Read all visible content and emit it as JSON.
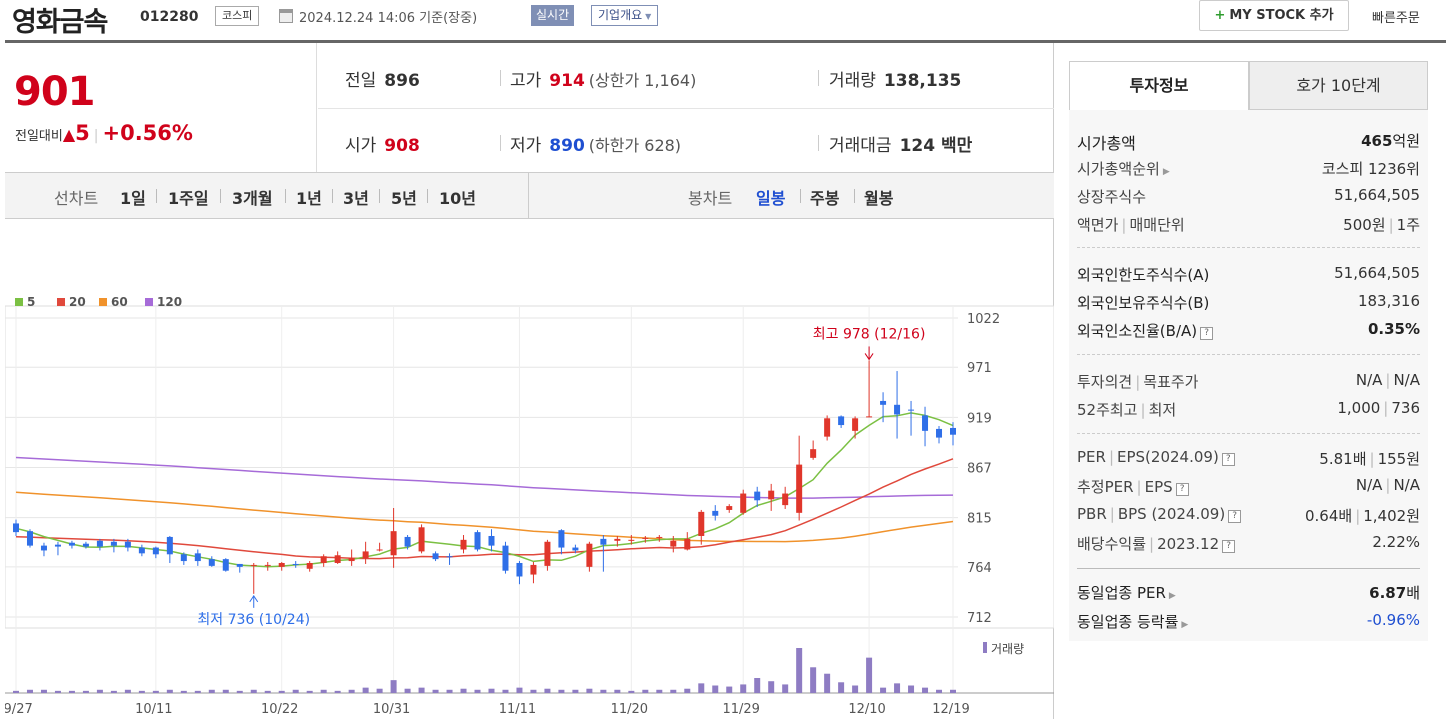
{
  "header": {
    "stock_name": "영화금속",
    "stock_code": "012280",
    "market": "코스피",
    "base_time": "2024.12.24 14:06 기준(장중)",
    "realtime_label": "실시간",
    "company_info_label": "기업개요",
    "mystock_label": "MY STOCK 추가",
    "quick_order_label": "빠른주문"
  },
  "quote": {
    "current_price": "901",
    "change_label": "전일대비",
    "change_arrow": "▲",
    "change_amount": "5",
    "change_pct": "+0.56%",
    "prev_close_label": "전일",
    "prev_close": "896",
    "high_label": "고가",
    "high": "914",
    "upper_limit": "(상한가 1,164)",
    "volume_label": "거래량",
    "volume": "138,135",
    "open_label": "시가",
    "open": "908",
    "low_label": "저가",
    "low": "890",
    "lower_limit": "(하한가 628)",
    "amount_label": "거래대금",
    "amount": "124 백만"
  },
  "toolbar": {
    "line_chart_label": "선차트",
    "line_periods": [
      "1일",
      "1주일",
      "3개월",
      "1년",
      "3년",
      "5년",
      "10년"
    ],
    "candle_chart_label": "봉차트",
    "candle_periods": [
      "일봉",
      "주봉",
      "월봉"
    ],
    "active_candle_period": "일봉"
  },
  "chart_data": {
    "type": "candlestick",
    "legend": [
      {
        "name": "5",
        "color": "#7bc043"
      },
      {
        "name": "20",
        "color": "#e0493c"
      },
      {
        "name": "60",
        "color": "#f0922b"
      },
      {
        "name": "120",
        "color": "#a66bd8"
      }
    ],
    "y_ticks": [
      1022,
      971,
      919,
      867,
      815,
      764,
      712
    ],
    "ylim": [
      712,
      1022
    ],
    "x_ticks": [
      "09/27",
      "10/11",
      "10/22",
      "10/31",
      "11/11",
      "11/20",
      "11/29",
      "12/10",
      "12/19"
    ],
    "high_annotation": "최고 978 (12/16)",
    "low_annotation": "최저 736 (10/24)",
    "volume_label": "거래량",
    "candles": [
      {
        "o": 809,
        "c": 800,
        "h": 813,
        "l": 796,
        "v": 2
      },
      {
        "o": 801,
        "c": 786,
        "h": 803,
        "l": 784,
        "v": 3
      },
      {
        "o": 786,
        "c": 781,
        "h": 789,
        "l": 775,
        "v": 3
      },
      {
        "o": 787,
        "c": 785,
        "h": 790,
        "l": 776,
        "v": 2
      },
      {
        "o": 789,
        "c": 786,
        "h": 791,
        "l": 783,
        "v": 2
      },
      {
        "o": 788,
        "c": 785,
        "h": 790,
        "l": 783,
        "v": 2
      },
      {
        "o": 791,
        "c": 785,
        "h": 793,
        "l": 781,
        "v": 3
      },
      {
        "o": 790,
        "c": 786,
        "h": 793,
        "l": 779,
        "v": 2
      },
      {
        "o": 790,
        "c": 784,
        "h": 793,
        "l": 780,
        "v": 3
      },
      {
        "o": 784,
        "c": 778,
        "h": 787,
        "l": 775,
        "v": 2
      },
      {
        "o": 784,
        "c": 777,
        "h": 785,
        "l": 773,
        "v": 2
      },
      {
        "o": 795,
        "c": 777,
        "h": 796,
        "l": 768,
        "v": 3
      },
      {
        "o": 777,
        "c": 770,
        "h": 779,
        "l": 766,
        "v": 2
      },
      {
        "o": 778,
        "c": 770,
        "h": 782,
        "l": 765,
        "v": 2
      },
      {
        "o": 772,
        "c": 765,
        "h": 775,
        "l": 764,
        "v": 3
      },
      {
        "o": 772,
        "c": 760,
        "h": 773,
        "l": 759,
        "v": 3
      },
      {
        "o": 767,
        "c": 764,
        "h": 767,
        "l": 758,
        "v": 2
      },
      {
        "o": 766,
        "c": 766,
        "h": 768,
        "l": 736,
        "v": 3
      },
      {
        "o": 765,
        "c": 766,
        "h": 769,
        "l": 760,
        "v": 2
      },
      {
        "o": 764,
        "c": 768,
        "h": 769,
        "l": 760,
        "v": 2
      },
      {
        "o": 767,
        "c": 766,
        "h": 770,
        "l": 763,
        "v": 3
      },
      {
        "o": 762,
        "c": 768,
        "h": 770,
        "l": 759,
        "v": 2
      },
      {
        "o": 768,
        "c": 775,
        "h": 777,
        "l": 764,
        "v": 3
      },
      {
        "o": 768,
        "c": 776,
        "h": 780,
        "l": 767,
        "v": 2
      },
      {
        "o": 770,
        "c": 773,
        "h": 782,
        "l": 765,
        "v": 3
      },
      {
        "o": 773,
        "c": 780,
        "h": 790,
        "l": 767,
        "v": 5
      },
      {
        "o": 781,
        "c": 782,
        "h": 789,
        "l": 780,
        "v": 4
      },
      {
        "o": 776,
        "c": 801,
        "h": 825,
        "l": 763,
        "v": 12
      },
      {
        "o": 795,
        "c": 785,
        "h": 797,
        "l": 782,
        "v": 4
      },
      {
        "o": 780,
        "c": 805,
        "h": 808,
        "l": 778,
        "v": 5
      },
      {
        "o": 778,
        "c": 772,
        "h": 780,
        "l": 770,
        "v": 3
      },
      {
        "o": 775,
        "c": 774,
        "h": 778,
        "l": 766,
        "v": 3
      },
      {
        "o": 782,
        "c": 792,
        "h": 797,
        "l": 778,
        "v": 4
      },
      {
        "o": 800,
        "c": 782,
        "h": 802,
        "l": 780,
        "v": 3
      },
      {
        "o": 796,
        "c": 786,
        "h": 803,
        "l": 780,
        "v": 4
      },
      {
        "o": 786,
        "c": 760,
        "h": 790,
        "l": 757,
        "v": 3
      },
      {
        "o": 768,
        "c": 754,
        "h": 770,
        "l": 746,
        "v": 5
      },
      {
        "o": 756,
        "c": 766,
        "h": 769,
        "l": 747,
        "v": 3
      },
      {
        "o": 765,
        "c": 790,
        "h": 792,
        "l": 760,
        "v": 4
      },
      {
        "o": 802,
        "c": 784,
        "h": 803,
        "l": 777,
        "v": 3
      },
      {
        "o": 784,
        "c": 781,
        "h": 787,
        "l": 778,
        "v": 3
      },
      {
        "o": 764,
        "c": 788,
        "h": 790,
        "l": 759,
        "v": 4
      },
      {
        "o": 793,
        "c": 787,
        "h": 797,
        "l": 759,
        "v": 3
      },
      {
        "o": 791,
        "c": 793,
        "h": 796,
        "l": 785,
        "v": 3
      },
      {
        "o": 792,
        "c": 792,
        "h": 797,
        "l": 787,
        "v": 2
      },
      {
        "o": 793,
        "c": 794,
        "h": 796,
        "l": 789,
        "v": 3
      },
      {
        "o": 795,
        "c": 795,
        "h": 797,
        "l": 790,
        "v": 3
      },
      {
        "o": 785,
        "c": 791,
        "h": 796,
        "l": 779,
        "v": 3
      },
      {
        "o": 782,
        "c": 793,
        "h": 800,
        "l": 781,
        "v": 4
      },
      {
        "o": 796,
        "c": 821,
        "h": 823,
        "l": 787,
        "v": 9
      },
      {
        "o": 822,
        "c": 817,
        "h": 828,
        "l": 812,
        "v": 7
      },
      {
        "o": 823,
        "c": 827,
        "h": 829,
        "l": 820,
        "v": 6
      },
      {
        "o": 820,
        "c": 840,
        "h": 844,
        "l": 818,
        "v": 8
      },
      {
        "o": 842,
        "c": 833,
        "h": 847,
        "l": 826,
        "v": 14
      },
      {
        "o": 834,
        "c": 843,
        "h": 850,
        "l": 822,
        "v": 11
      },
      {
        "o": 828,
        "c": 840,
        "h": 847,
        "l": 824,
        "v": 8
      },
      {
        "o": 820,
        "c": 870,
        "h": 900,
        "l": 812,
        "v": 42
      },
      {
        "o": 877,
        "c": 886,
        "h": 895,
        "l": 875,
        "v": 24
      },
      {
        "o": 899,
        "c": 918,
        "h": 921,
        "l": 895,
        "v": 18
      },
      {
        "o": 920,
        "c": 911,
        "h": 921,
        "l": 908,
        "v": 10
      },
      {
        "o": 905,
        "c": 918,
        "h": 920,
        "l": 897,
        "v": 7
      },
      {
        "o": 919,
        "c": 920,
        "h": 978,
        "l": 919,
        "v": 33
      },
      {
        "o": 936,
        "c": 932,
        "h": 945,
        "l": 914,
        "v": 5
      },
      {
        "o": 932,
        "c": 922,
        "h": 967,
        "l": 897,
        "v": 9
      },
      {
        "o": 927,
        "c": 926,
        "h": 936,
        "l": 900,
        "v": 7
      },
      {
        "o": 921,
        "c": 905,
        "h": 930,
        "l": 889,
        "v": 5
      },
      {
        "o": 907,
        "c": 898,
        "h": 910,
        "l": 892,
        "v": 3
      },
      {
        "o": 908,
        "c": 901,
        "h": 914,
        "l": 890,
        "v": 3
      }
    ]
  },
  "invest_info": {
    "tab_invest": "투자정보",
    "tab_hoga": "호가 10단계",
    "market_cap_label": "시가총액",
    "market_cap_value": "465",
    "market_cap_unit": "억원",
    "market_cap_rank_label": "시가총액순위",
    "market_cap_rank": "코스피 1236위",
    "shares_label": "상장주식수",
    "shares": "51,664,505",
    "par_label": "액면가",
    "trade_unit_label": "매매단위",
    "par_value": "500원",
    "trade_unit": "1주",
    "foreign_limit_label": "외국인한도주식수(A)",
    "foreign_limit": "51,664,505",
    "foreign_hold_label": "외국인보유주식수(B)",
    "foreign_hold": "183,316",
    "foreign_rate_label": "외국인소진율(B/A)",
    "foreign_rate": "0.35%",
    "opinion_label": "투자의견",
    "target_label": "목표주가",
    "opinion": "N/A",
    "target": "N/A",
    "w52_high_label": "52주최고",
    "w52_low_label": "최저",
    "w52_high": "1,000",
    "w52_low": "736",
    "per_label": "PER",
    "eps_label": "EPS(2024.09)",
    "per": "5.81배",
    "eps": "155원",
    "est_per_label": "추정PER",
    "est_eps_label": "EPS",
    "est_per": "N/A",
    "est_eps": "N/A",
    "pbr_label": "PBR",
    "bps_label": "BPS (2024.09)",
    "pbr": "0.64배",
    "bps": "1,402원",
    "div_label": "배당수익률",
    "div_year": "2023.12",
    "div": "2.22%",
    "sector_per_label": "동일업종 PER",
    "sector_per_value": "6.87",
    "sector_per_unit": "배",
    "sector_change_label": "동일업종 등락률",
    "sector_change": "-0.96%"
  }
}
